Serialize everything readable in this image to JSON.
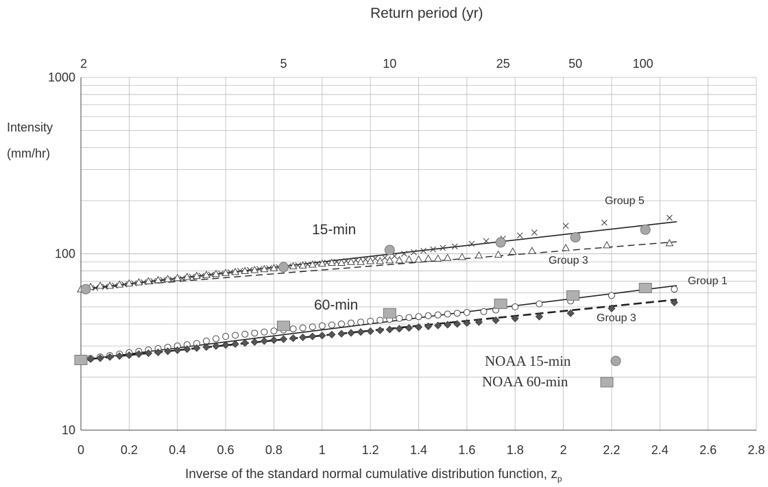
{
  "chart_data": {
    "type": "scatter",
    "title": "Return period (yr)",
    "xlabel": "Inverse of the standard normal cumulative distribution function, z",
    "xlabel_subscript": "p",
    "ylabel": [
      "Intensity",
      "(mm/hr)"
    ],
    "x_axis": {
      "min": 0,
      "max": 2.8,
      "ticks": [
        "0",
        "0.2",
        "0.4",
        "0.6",
        "0.8",
        "1",
        "1.2",
        "1.4",
        "1.6",
        "1.8",
        "2",
        "2.2",
        "2.4",
        "2.6",
        "2.8"
      ]
    },
    "y_axis": {
      "scale": "log",
      "min": 10,
      "max": 1000,
      "ticks": [
        "10",
        "100",
        "1000"
      ]
    },
    "grid": true,
    "top_axis": {
      "label": "Return period (yr)",
      "ticks": [
        {
          "label": "2",
          "z": 0.0
        },
        {
          "label": "5",
          "z": 0.84
        },
        {
          "label": "10",
          "z": 1.28
        },
        {
          "label": "25",
          "z": 1.75
        },
        {
          "label": "50",
          "z": 2.05
        },
        {
          "label": "100",
          "z": 2.33
        }
      ]
    },
    "annotations": [
      "15-min",
      "60-min",
      "Group 5",
      "Group 3",
      "Group 1",
      "Group 3"
    ],
    "legend": [
      "NOAA 15-min",
      "NOAA 60-min"
    ],
    "series": [
      {
        "name": "Group 5",
        "marker": "x",
        "x": [
          0.02,
          0.06,
          0.1,
          0.14,
          0.18,
          0.22,
          0.26,
          0.3,
          0.34,
          0.38,
          0.42,
          0.46,
          0.5,
          0.54,
          0.58,
          0.62,
          0.66,
          0.7,
          0.74,
          0.78,
          0.82,
          0.86,
          0.9,
          0.94,
          0.98,
          1.02,
          1.06,
          1.1,
          1.14,
          1.18,
          1.22,
          1.26,
          1.3,
          1.34,
          1.38,
          1.42,
          1.46,
          1.5,
          1.55,
          1.62,
          1.68,
          1.75,
          1.82,
          1.88,
          2.01,
          2.17,
          2.44
        ],
        "y": [
          63,
          64,
          65,
          66,
          67,
          68,
          69,
          70,
          71,
          71.5,
          72.5,
          74,
          75,
          76,
          77.5,
          78.5,
          80,
          81,
          82,
          83,
          84,
          85,
          86,
          87,
          88,
          89,
          90,
          91,
          92,
          93,
          94,
          95,
          97,
          100,
          102,
          104,
          106,
          108,
          110,
          114,
          118,
          122,
          127,
          132,
          144,
          150,
          160
        ]
      },
      {
        "name": "Group 3",
        "marker": "triangle",
        "x": [
          0.0,
          0.04,
          0.08,
          0.12,
          0.16,
          0.2,
          0.24,
          0.28,
          0.32,
          0.36,
          0.4,
          0.44,
          0.48,
          0.52,
          0.56,
          0.6,
          0.64,
          0.68,
          0.72,
          0.76,
          0.8,
          0.84,
          0.88,
          0.92,
          0.96,
          1.0,
          1.04,
          1.08,
          1.12,
          1.16,
          1.2,
          1.24,
          1.28,
          1.32,
          1.36,
          1.4,
          1.44,
          1.48,
          1.52,
          1.58,
          1.65,
          1.73,
          1.79,
          1.87,
          2.01,
          2.18,
          2.44
        ],
        "y": [
          63,
          65,
          66,
          66,
          67,
          68,
          69,
          70,
          71,
          72,
          73,
          74,
          75,
          76,
          77,
          78,
          79,
          80,
          81,
          82,
          83,
          84,
          85,
          86,
          87,
          88,
          89,
          89,
          90,
          90,
          91,
          91,
          92,
          92,
          93,
          93,
          94,
          94,
          95,
          96,
          98,
          99,
          103,
          104,
          108,
          112,
          115
        ]
      },
      {
        "name": "Group 1",
        "marker": "circle",
        "x": [
          0.0,
          0.04,
          0.08,
          0.12,
          0.16,
          0.2,
          0.24,
          0.28,
          0.32,
          0.36,
          0.4,
          0.44,
          0.48,
          0.52,
          0.56,
          0.6,
          0.64,
          0.68,
          0.72,
          0.76,
          0.8,
          0.84,
          0.88,
          0.92,
          0.96,
          1.0,
          1.04,
          1.08,
          1.12,
          1.16,
          1.2,
          1.24,
          1.28,
          1.32,
          1.36,
          1.4,
          1.44,
          1.48,
          1.52,
          1.56,
          1.6,
          1.67,
          1.72,
          1.8,
          1.9,
          2.03,
          2.2,
          2.46
        ],
        "y": [
          25,
          25.5,
          26,
          26.5,
          27,
          27.5,
          28,
          28.5,
          29,
          29.5,
          30,
          30.5,
          31,
          32,
          33,
          34,
          34.5,
          35,
          35.5,
          36,
          36.5,
          37,
          37.5,
          38,
          38.5,
          39,
          39.5,
          40,
          40.5,
          41,
          41.5,
          42,
          42.5,
          43,
          43.5,
          44,
          44.5,
          45,
          45.5,
          46,
          46.5,
          47,
          48,
          50,
          52,
          54,
          58,
          63
        ]
      },
      {
        "name": "Group 3",
        "marker": "diamond",
        "x": [
          0.0,
          0.04,
          0.08,
          0.12,
          0.16,
          0.2,
          0.24,
          0.28,
          0.32,
          0.36,
          0.4,
          0.44,
          0.48,
          0.52,
          0.56,
          0.6,
          0.64,
          0.68,
          0.72,
          0.76,
          0.8,
          0.84,
          0.88,
          0.92,
          0.96,
          1.0,
          1.04,
          1.08,
          1.12,
          1.16,
          1.2,
          1.24,
          1.28,
          1.32,
          1.36,
          1.4,
          1.44,
          1.48,
          1.52,
          1.56,
          1.6,
          1.65,
          1.72,
          1.8,
          1.9,
          2.03,
          2.2,
          2.46
        ],
        "y": [
          25,
          25.3,
          25.6,
          26,
          26.3,
          26.6,
          27,
          27.3,
          27.6,
          28,
          28.4,
          28.8,
          29.2,
          29.6,
          30,
          30.4,
          30.8,
          31.2,
          31.6,
          32,
          32.4,
          32.8,
          33.2,
          33.6,
          34,
          34.4,
          34.8,
          35.2,
          35.6,
          36,
          36.4,
          36.8,
          37.2,
          37.6,
          38,
          38.4,
          38.8,
          39.2,
          39.6,
          40,
          40.5,
          41,
          42,
          43,
          44,
          46,
          49,
          53
        ]
      },
      {
        "name": "NOAA 15-min",
        "marker": "gray-circle",
        "x": [
          0.02,
          0.84,
          1.28,
          1.74,
          2.05,
          2.34
        ],
        "y": [
          63,
          84,
          105,
          116,
          124,
          137
        ]
      },
      {
        "name": "NOAA 60-min",
        "marker": "gray-square",
        "x": [
          0.0,
          0.84,
          1.28,
          1.74,
          2.04,
          2.34
        ],
        "y": [
          25,
          39,
          46,
          52,
          58,
          64
        ]
      }
    ],
    "fit_lines": [
      {
        "name": "Group 5",
        "style": "solid",
        "x": [
          0,
          2.47
        ],
        "y": [
          63,
          152
        ]
      },
      {
        "name": "Group 3",
        "style": "dashed",
        "x": [
          0,
          2.47
        ],
        "y": [
          63,
          117
        ]
      },
      {
        "name": "Group 1",
        "style": "solid",
        "x": [
          0,
          2.47
        ],
        "y": [
          25,
          66
        ]
      },
      {
        "name": "Group 3",
        "style": "dashed-bold",
        "x": [
          0,
          2.47
        ],
        "y": [
          25,
          55
        ]
      }
    ]
  }
}
